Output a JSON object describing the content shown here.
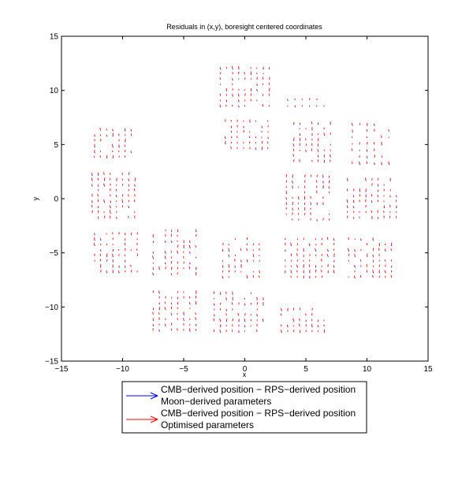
{
  "chart_data": {
    "type": "scatter",
    "title": "Residuals in (x,y), boresight centered coordinates",
    "xlabel": "x",
    "ylabel": "y",
    "xlim": [
      -15,
      15
    ],
    "ylim": [
      -15,
      15
    ],
    "xticks": [
      "−15",
      "−10",
      "−5",
      "0",
      "5",
      "10",
      "15"
    ],
    "yticks": [
      "−15",
      "−10",
      "−5",
      "0",
      "5",
      "10",
      "15"
    ],
    "grid": false,
    "legend_position": "bottom-center-below-axes",
    "series": [
      {
        "name": "CMB−derived position − RPS−derived position\nMoon−derived parameters",
        "legend_line1": "CMB−derived position − RPS−derived position",
        "legend_line2": "Moon−derived parameters",
        "color": "#0000ff",
        "marker": "arrow"
      },
      {
        "name": "CMB−derived position − RPS−derived position\nOptimised parameters",
        "legend_line1": "CMB−derived position − RPS−derived position",
        "legend_line2": "Optimised parameters",
        "color": "#ff0000",
        "marker": "arrow"
      }
    ],
    "clusters": [
      {
        "x": [
          -2,
          2.2
        ],
        "y": [
          8.5,
          12.4
        ],
        "dx": 0.5,
        "dy": 0.5
      },
      {
        "x": [
          -1.6,
          2.0
        ],
        "y": [
          4.6,
          7.4
        ],
        "dx": 0.5,
        "dy": 0.5
      },
      {
        "x": [
          -12.3,
          -9.3
        ],
        "y": [
          3.8,
          6.5
        ],
        "dx": 0.5,
        "dy": 0.5
      },
      {
        "x": [
          -12.5,
          -8.7
        ],
        "y": [
          -1.8,
          2.3
        ],
        "dx": 0.5,
        "dy": 0.5
      },
      {
        "x": [
          -12.3,
          -8.8
        ],
        "y": [
          -6.8,
          -3.0
        ],
        "dx": 0.5,
        "dy": 0.5
      },
      {
        "x": [
          -7.5,
          -3.8
        ],
        "y": [
          -7.0,
          -3.0
        ],
        "dx": 0.5,
        "dy": 0.5
      },
      {
        "x": [
          -7.5,
          -3.9
        ],
        "y": [
          -12.2,
          -8.6
        ],
        "dx": 0.5,
        "dy": 0.5
      },
      {
        "x": [
          -2.5,
          1.7
        ],
        "y": [
          -12.3,
          -8.5
        ],
        "dx": 0.5,
        "dy": 0.5
      },
      {
        "x": [
          -1.8,
          1.6
        ],
        "y": [
          -7.3,
          -3.5
        ],
        "dx": 0.5,
        "dy": 0.5
      },
      {
        "x": [
          3.0,
          6.6
        ],
        "y": [
          -12.3,
          -10.0
        ],
        "dx": 0.5,
        "dy": 0.5
      },
      {
        "x": [
          3.3,
          7.3
        ],
        "y": [
          -7.3,
          -3.5
        ],
        "dx": 0.5,
        "dy": 0.5
      },
      {
        "x": [
          8.5,
          12.0
        ],
        "y": [
          -7.3,
          -3.6
        ],
        "dx": 0.5,
        "dy": 0.5
      },
      {
        "x": [
          3.4,
          7.3
        ],
        "y": [
          -2.0,
          2.0
        ],
        "dx": 0.5,
        "dy": 0.5
      },
      {
        "x": [
          8.4,
          12.4
        ],
        "y": [
          -1.8,
          1.9
        ],
        "dx": 0.5,
        "dy": 0.5
      },
      {
        "x": [
          4.0,
          7.2
        ],
        "y": [
          3.4,
          7.2
        ],
        "dx": 0.5,
        "dy": 0.5
      },
      {
        "x": [
          3.5,
          6.9
        ],
        "y": [
          8.5,
          9.4
        ],
        "dx": 0.6,
        "dy": 0.6
      },
      {
        "x": [
          8.8,
          12.0
        ],
        "y": [
          3.2,
          7.0
        ],
        "dx": 0.6,
        "dy": 0.6
      }
    ]
  }
}
